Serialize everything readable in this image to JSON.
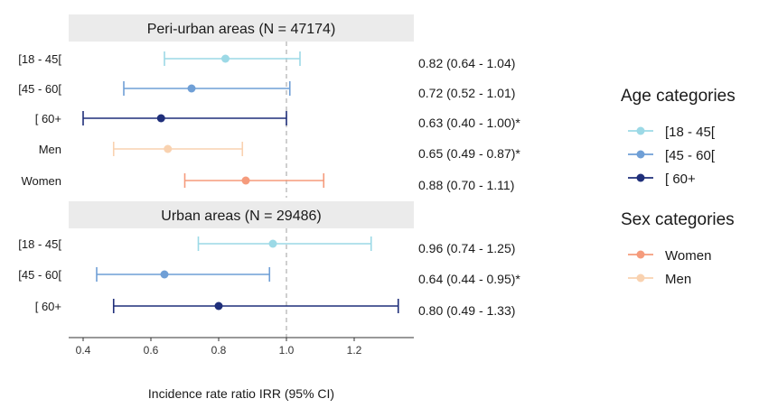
{
  "chart_data": {
    "type": "forest",
    "xlabel": "Incidence rate ratio IRR (95% CI)",
    "x_ticks": [
      0.4,
      0.6,
      0.8,
      1.0,
      1.2
    ],
    "x_tick_labels": [
      "0.4",
      "0.6",
      "0.8",
      "1.0",
      "1.2"
    ],
    "xlim": [
      0.34,
      1.35
    ],
    "reference_line": 1.0,
    "colors": {
      "18-45": "#9cd9e6",
      "45-60": "#6f9fd6",
      "60plus": "#1f2f7a",
      "women": "#f59b7c",
      "men": "#f9d2b0"
    },
    "panels": [
      {
        "title": "Peri-urban areas (N = 47174)",
        "rows": [
          {
            "label": "[18 - 45[",
            "estimate": 0.82,
            "lower": 0.64,
            "upper": 1.04,
            "ci_text": "0.82 (0.64 - 1.04)",
            "group": "18-45"
          },
          {
            "label": "[45 - 60[",
            "estimate": 0.72,
            "lower": 0.52,
            "upper": 1.01,
            "ci_text": "0.72 (0.52 - 1.01)",
            "group": "45-60"
          },
          {
            "label": "[ 60+",
            "estimate": 0.63,
            "lower": 0.4,
            "upper": 1.0,
            "ci_text": "0.63 (0.40 - 1.00)*",
            "group": "60plus"
          },
          {
            "label": "Men",
            "estimate": 0.65,
            "lower": 0.49,
            "upper": 0.87,
            "ci_text": "0.65 (0.49 - 0.87)*",
            "group": "men"
          },
          {
            "label": "Women",
            "estimate": 0.88,
            "lower": 0.7,
            "upper": 1.11,
            "ci_text": "0.88 (0.70 - 1.11)",
            "group": "women"
          }
        ]
      },
      {
        "title": "Urban areas (N = 29486)",
        "rows": [
          {
            "label": "[18 - 45[",
            "estimate": 0.96,
            "lower": 0.74,
            "upper": 1.25,
            "ci_text": "0.96 (0.74 - 1.25)",
            "group": "18-45"
          },
          {
            "label": "[45 - 60[",
            "estimate": 0.64,
            "lower": 0.44,
            "upper": 0.95,
            "ci_text": "0.64 (0.44 - 0.95)*",
            "group": "45-60"
          },
          {
            "label": "[ 60+",
            "estimate": 0.8,
            "lower": 0.49,
            "upper": 1.33,
            "ci_text": "0.80 (0.49 - 1.33)",
            "group": "60plus"
          }
        ]
      }
    ],
    "legends": [
      {
        "title": "Age categories",
        "entries": [
          {
            "label": "[18 - 45[",
            "group": "18-45"
          },
          {
            "label": "[45 - 60[",
            "group": "45-60"
          },
          {
            "label": "[ 60+",
            "group": "60plus"
          }
        ]
      },
      {
        "title": "Sex categories",
        "entries": [
          {
            "label": "Women",
            "group": "women"
          },
          {
            "label": "Men",
            "group": "men"
          }
        ]
      }
    ]
  }
}
